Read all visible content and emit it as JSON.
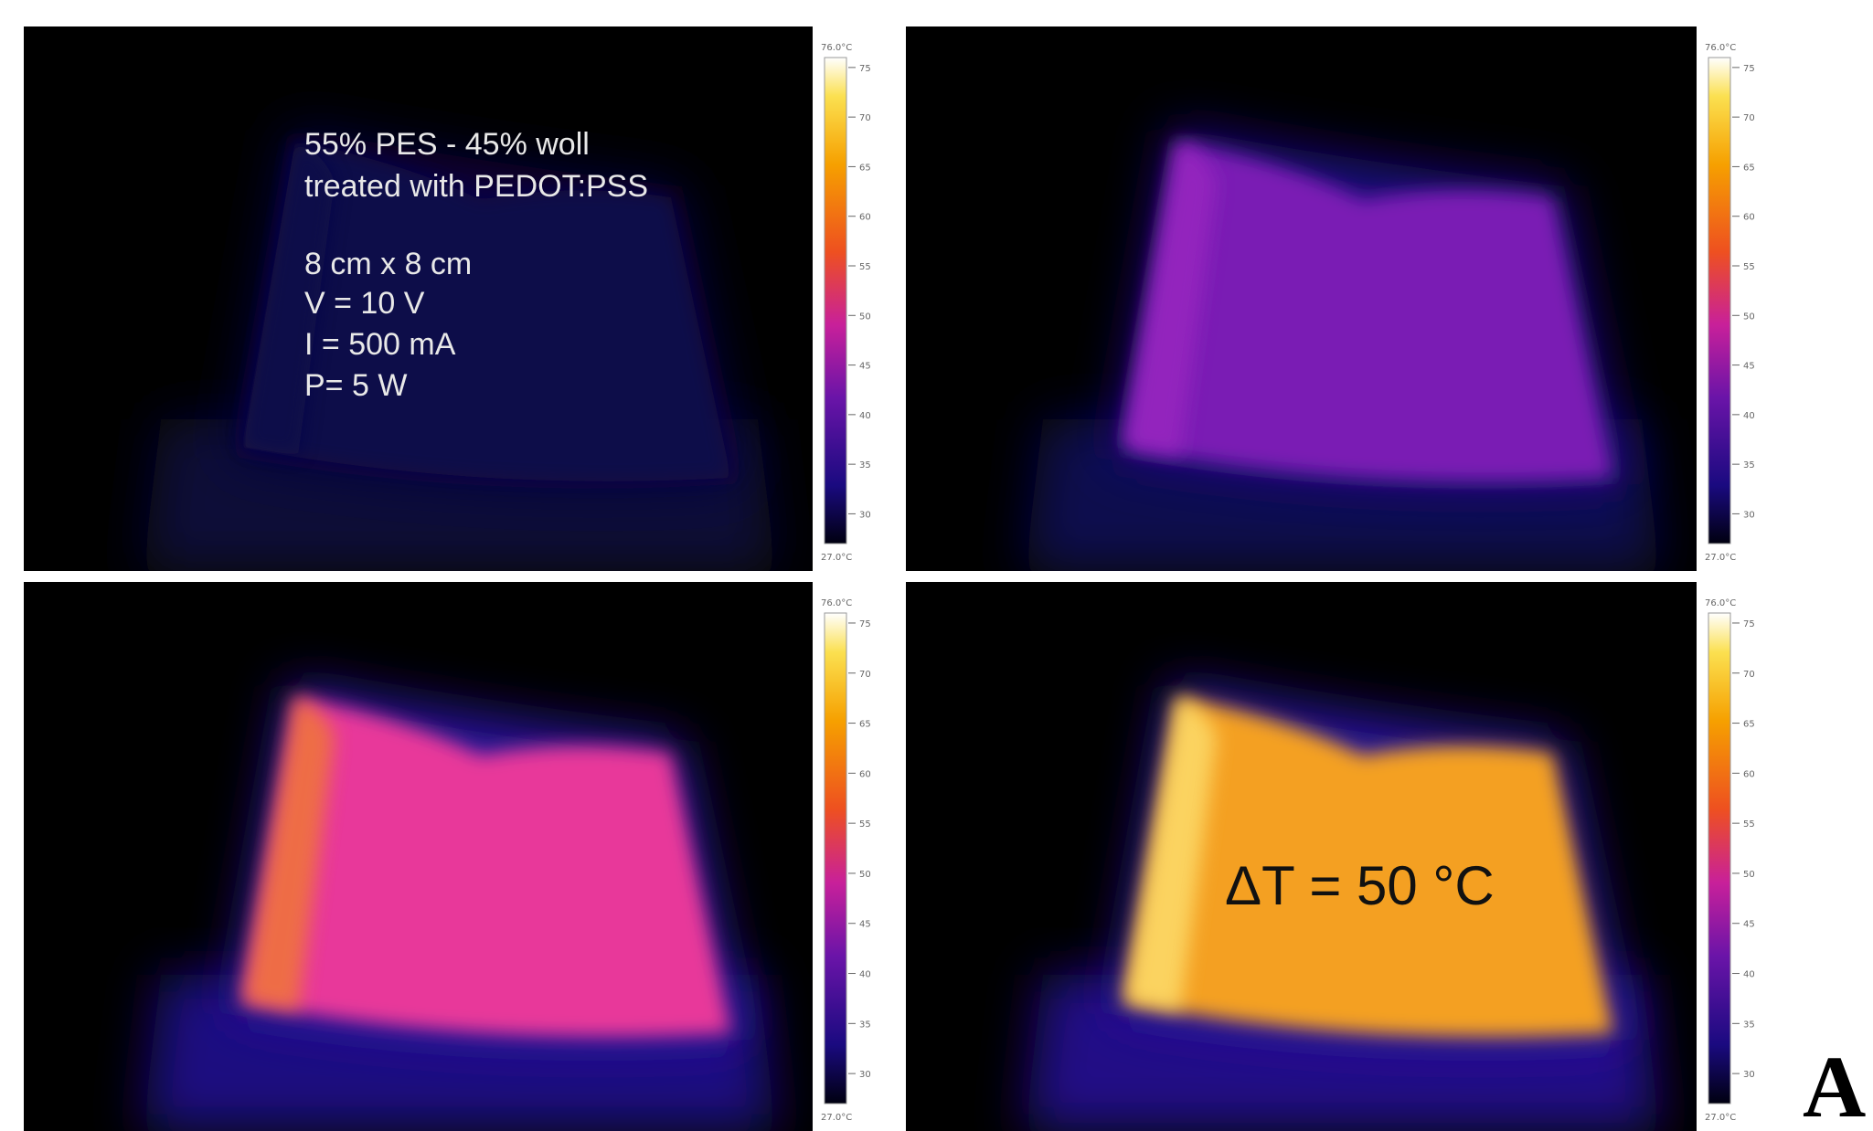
{
  "panels": [
    {
      "lines": [
        "55% PES - 45% woll",
        "treated with PEDOT:PSS",
        "8 cm x 8 cm",
        "V = 10 V",
        "I = 500 mA",
        "P= 5 W"
      ]
    },
    {
      "lines": []
    },
    {
      "lines": []
    },
    {
      "lines": [
        "ΔT = 50 °C"
      ]
    }
  ],
  "colorbar": {
    "top": {
      "value": 76,
      "label": "76.0°C"
    },
    "bottom": {
      "value": 27,
      "label": "27.0°C"
    },
    "ticks": [
      30,
      35,
      40,
      45,
      50,
      55,
      60,
      65,
      70,
      75
    ]
  },
  "label": "A"
}
